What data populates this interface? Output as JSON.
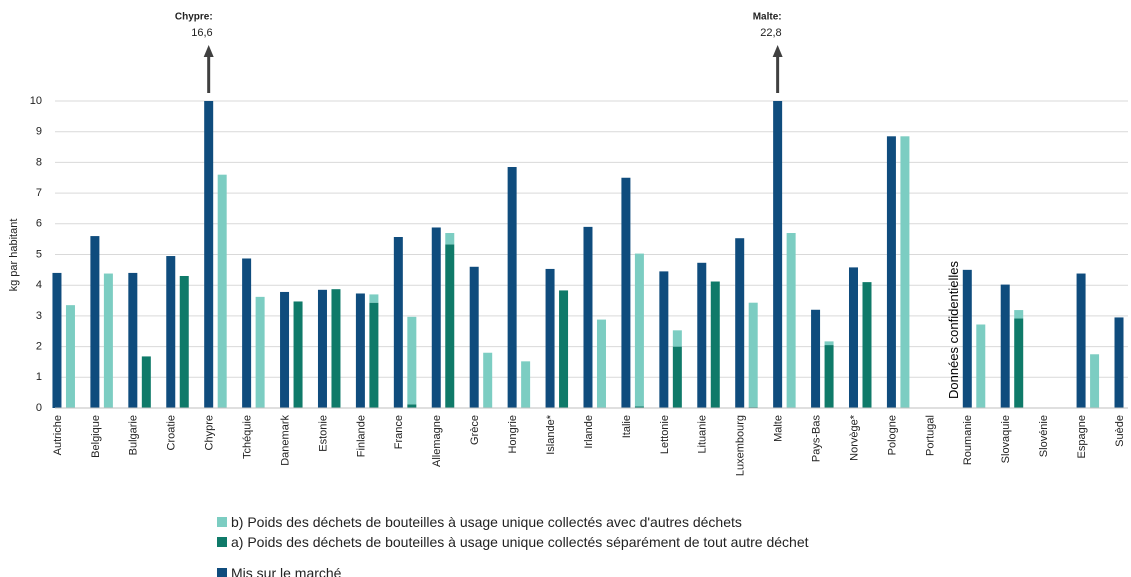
{
  "chart_data": {
    "type": "bar",
    "y_label": "kg par habitant",
    "categories": [
      "Autriche",
      "Belgique",
      "Bulgarie",
      "Croatie",
      "Chypre",
      "Tchéquie",
      "Danemark",
      "Estonie",
      "Finlande",
      "France",
      "Allemagne",
      "Grèce",
      "Hongrie",
      "Islande*",
      "Irlande",
      "Italie",
      "Lettonie",
      "Lituanie",
      "Luxembourg",
      "Malte",
      "Pays-Bas",
      "Norvège*",
      "Pologne",
      "Portugal",
      "Roumanie",
      "Slovaquie",
      "Slovénie",
      "Espagne",
      "Suède"
    ],
    "series": [
      {
        "name": "Mis sur le marché",
        "color": "#0f4c7d",
        "values": [
          4.4,
          5.6,
          4.4,
          4.95,
          16.6,
          4.87,
          3.78,
          3.85,
          3.73,
          5.57,
          5.88,
          4.6,
          7.85,
          4.53,
          5.9,
          7.5,
          4.45,
          4.73,
          5.53,
          22.8,
          3.2,
          4.58,
          8.85,
          null,
          4.5,
          4.02,
          null,
          4.38,
          2.95
        ],
        "value_labels": [
          null,
          null,
          null,
          null,
          "16,6",
          null,
          null,
          null,
          null,
          null,
          null,
          null,
          null,
          null,
          null,
          null,
          null,
          null,
          null,
          "22,8",
          null,
          null,
          null,
          null,
          null,
          null,
          null,
          null,
          null
        ]
      },
      {
        "name": "a) Poids des déchets de bouteilles à usage unique collectés séparément de tout autre déchet",
        "color": "#0f7a69",
        "stack": "collected",
        "values": [
          null,
          null,
          1.68,
          4.3,
          null,
          null,
          3.47,
          3.87,
          3.43,
          0.12,
          5.33,
          null,
          null,
          3.83,
          null,
          0.05,
          2.0,
          4.12,
          0.03,
          null,
          2.05,
          4.1,
          null,
          null,
          null,
          2.92,
          null,
          null,
          null
        ]
      },
      {
        "name": "b) Poids des déchets de bouteilles à usage unique collectés avec d'autres déchets",
        "color": "#7ccdc2",
        "stack": "collected",
        "values": [
          3.35,
          4.38,
          null,
          null,
          7.6,
          3.62,
          null,
          null,
          0.27,
          2.85,
          0.37,
          1.8,
          1.52,
          null,
          2.88,
          4.98,
          0.53,
          null,
          3.4,
          5.7,
          0.12,
          null,
          8.85,
          null,
          2.72,
          0.27,
          null,
          1.75,
          null
        ]
      }
    ],
    "annotations": [
      {
        "x": "Chypre",
        "text": "Chypre:"
      },
      {
        "x": "Malte",
        "text": "Malte:"
      },
      {
        "x": "Portugal",
        "text": "Données confidentielles"
      }
    ],
    "ylim": [
      0,
      10
    ],
    "yticks": [
      0,
      1,
      2,
      3,
      4,
      5,
      6,
      7,
      8,
      9,
      10
    ],
    "grid": true
  }
}
